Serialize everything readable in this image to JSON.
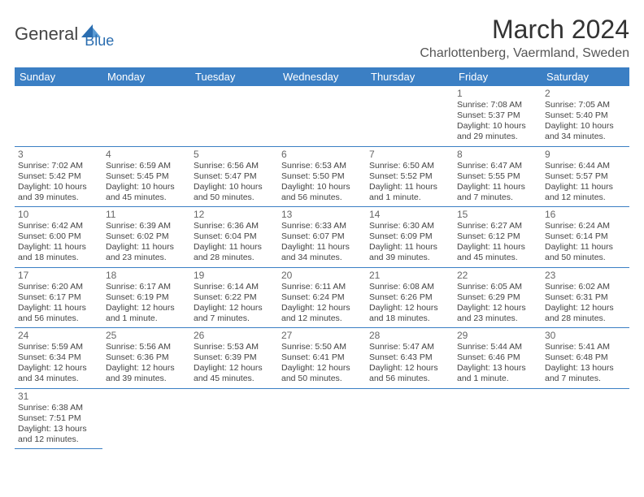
{
  "brand": {
    "part1": "General",
    "part2": "Blue"
  },
  "title": "March 2024",
  "location": "Charlottenberg, Vaermland, Sweden",
  "colors": {
    "header_bg": "#3b7fc4",
    "header_fg": "#ffffff",
    "rule": "#3b7fc4",
    "text": "#444444",
    "brand_blue": "#2a6db0"
  },
  "weekdays": [
    "Sunday",
    "Monday",
    "Tuesday",
    "Wednesday",
    "Thursday",
    "Friday",
    "Saturday"
  ],
  "weeks": [
    [
      null,
      null,
      null,
      null,
      null,
      {
        "n": "1",
        "sr": "Sunrise: 7:08 AM",
        "ss": "Sunset: 5:37 PM",
        "dl": "Daylight: 10 hours and 29 minutes."
      },
      {
        "n": "2",
        "sr": "Sunrise: 7:05 AM",
        "ss": "Sunset: 5:40 PM",
        "dl": "Daylight: 10 hours and 34 minutes."
      }
    ],
    [
      {
        "n": "3",
        "sr": "Sunrise: 7:02 AM",
        "ss": "Sunset: 5:42 PM",
        "dl": "Daylight: 10 hours and 39 minutes."
      },
      {
        "n": "4",
        "sr": "Sunrise: 6:59 AM",
        "ss": "Sunset: 5:45 PM",
        "dl": "Daylight: 10 hours and 45 minutes."
      },
      {
        "n": "5",
        "sr": "Sunrise: 6:56 AM",
        "ss": "Sunset: 5:47 PM",
        "dl": "Daylight: 10 hours and 50 minutes."
      },
      {
        "n": "6",
        "sr": "Sunrise: 6:53 AM",
        "ss": "Sunset: 5:50 PM",
        "dl": "Daylight: 10 hours and 56 minutes."
      },
      {
        "n": "7",
        "sr": "Sunrise: 6:50 AM",
        "ss": "Sunset: 5:52 PM",
        "dl": "Daylight: 11 hours and 1 minute."
      },
      {
        "n": "8",
        "sr": "Sunrise: 6:47 AM",
        "ss": "Sunset: 5:55 PM",
        "dl": "Daylight: 11 hours and 7 minutes."
      },
      {
        "n": "9",
        "sr": "Sunrise: 6:44 AM",
        "ss": "Sunset: 5:57 PM",
        "dl": "Daylight: 11 hours and 12 minutes."
      }
    ],
    [
      {
        "n": "10",
        "sr": "Sunrise: 6:42 AM",
        "ss": "Sunset: 6:00 PM",
        "dl": "Daylight: 11 hours and 18 minutes."
      },
      {
        "n": "11",
        "sr": "Sunrise: 6:39 AM",
        "ss": "Sunset: 6:02 PM",
        "dl": "Daylight: 11 hours and 23 minutes."
      },
      {
        "n": "12",
        "sr": "Sunrise: 6:36 AM",
        "ss": "Sunset: 6:04 PM",
        "dl": "Daylight: 11 hours and 28 minutes."
      },
      {
        "n": "13",
        "sr": "Sunrise: 6:33 AM",
        "ss": "Sunset: 6:07 PM",
        "dl": "Daylight: 11 hours and 34 minutes."
      },
      {
        "n": "14",
        "sr": "Sunrise: 6:30 AM",
        "ss": "Sunset: 6:09 PM",
        "dl": "Daylight: 11 hours and 39 minutes."
      },
      {
        "n": "15",
        "sr": "Sunrise: 6:27 AM",
        "ss": "Sunset: 6:12 PM",
        "dl": "Daylight: 11 hours and 45 minutes."
      },
      {
        "n": "16",
        "sr": "Sunrise: 6:24 AM",
        "ss": "Sunset: 6:14 PM",
        "dl": "Daylight: 11 hours and 50 minutes."
      }
    ],
    [
      {
        "n": "17",
        "sr": "Sunrise: 6:20 AM",
        "ss": "Sunset: 6:17 PM",
        "dl": "Daylight: 11 hours and 56 minutes."
      },
      {
        "n": "18",
        "sr": "Sunrise: 6:17 AM",
        "ss": "Sunset: 6:19 PM",
        "dl": "Daylight: 12 hours and 1 minute."
      },
      {
        "n": "19",
        "sr": "Sunrise: 6:14 AM",
        "ss": "Sunset: 6:22 PM",
        "dl": "Daylight: 12 hours and 7 minutes."
      },
      {
        "n": "20",
        "sr": "Sunrise: 6:11 AM",
        "ss": "Sunset: 6:24 PM",
        "dl": "Daylight: 12 hours and 12 minutes."
      },
      {
        "n": "21",
        "sr": "Sunrise: 6:08 AM",
        "ss": "Sunset: 6:26 PM",
        "dl": "Daylight: 12 hours and 18 minutes."
      },
      {
        "n": "22",
        "sr": "Sunrise: 6:05 AM",
        "ss": "Sunset: 6:29 PM",
        "dl": "Daylight: 12 hours and 23 minutes."
      },
      {
        "n": "23",
        "sr": "Sunrise: 6:02 AM",
        "ss": "Sunset: 6:31 PM",
        "dl": "Daylight: 12 hours and 28 minutes."
      }
    ],
    [
      {
        "n": "24",
        "sr": "Sunrise: 5:59 AM",
        "ss": "Sunset: 6:34 PM",
        "dl": "Daylight: 12 hours and 34 minutes."
      },
      {
        "n": "25",
        "sr": "Sunrise: 5:56 AM",
        "ss": "Sunset: 6:36 PM",
        "dl": "Daylight: 12 hours and 39 minutes."
      },
      {
        "n": "26",
        "sr": "Sunrise: 5:53 AM",
        "ss": "Sunset: 6:39 PM",
        "dl": "Daylight: 12 hours and 45 minutes."
      },
      {
        "n": "27",
        "sr": "Sunrise: 5:50 AM",
        "ss": "Sunset: 6:41 PM",
        "dl": "Daylight: 12 hours and 50 minutes."
      },
      {
        "n": "28",
        "sr": "Sunrise: 5:47 AM",
        "ss": "Sunset: 6:43 PM",
        "dl": "Daylight: 12 hours and 56 minutes."
      },
      {
        "n": "29",
        "sr": "Sunrise: 5:44 AM",
        "ss": "Sunset: 6:46 PM",
        "dl": "Daylight: 13 hours and 1 minute."
      },
      {
        "n": "30",
        "sr": "Sunrise: 5:41 AM",
        "ss": "Sunset: 6:48 PM",
        "dl": "Daylight: 13 hours and 7 minutes."
      }
    ],
    [
      {
        "n": "31",
        "sr": "Sunrise: 6:38 AM",
        "ss": "Sunset: 7:51 PM",
        "dl": "Daylight: 13 hours and 12 minutes."
      },
      null,
      null,
      null,
      null,
      null,
      null
    ]
  ]
}
